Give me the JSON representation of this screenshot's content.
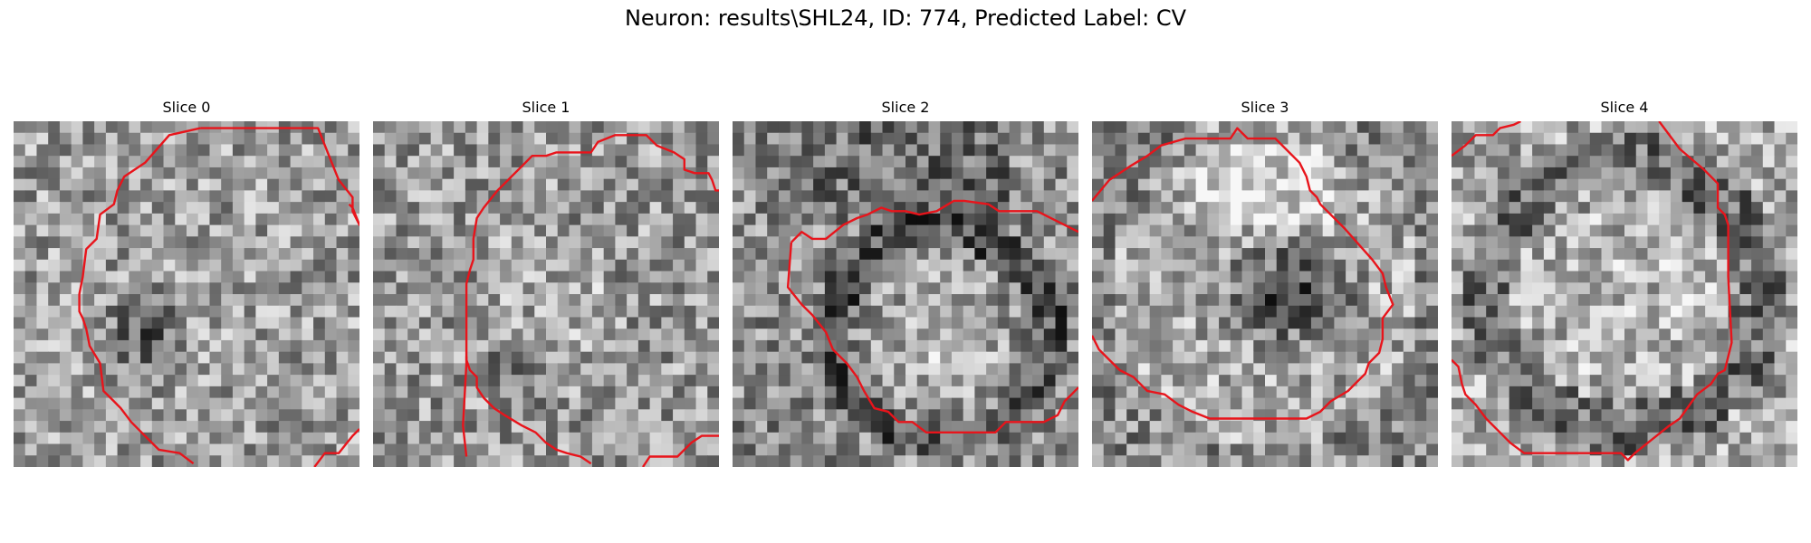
{
  "figure": {
    "title": "Neuron: results\\SHL24, ID: 774, Predicted Label: CV"
  },
  "panels": [
    {
      "title": "Slice 0",
      "seed": 11,
      "pattern": "dark-core",
      "contour": [
        [
          0.54,
          0.02
        ],
        [
          0.88,
          0.02
        ],
        [
          0.92,
          0.12
        ],
        [
          0.94,
          0.17
        ],
        [
          0.98,
          0.22
        ],
        [
          0.98,
          0.26
        ],
        [
          0.99,
          0.28
        ],
        [
          1.0,
          0.3
        ],
        [
          0.98,
          0.25
        ],
        [
          0.97,
          0.24
        ]
      ],
      "contour2": [
        [
          0.54,
          0.02
        ],
        [
          0.45,
          0.04
        ],
        [
          0.38,
          0.12
        ],
        [
          0.32,
          0.16
        ],
        [
          0.3,
          0.2
        ],
        [
          0.29,
          0.24
        ],
        [
          0.25,
          0.27
        ],
        [
          0.24,
          0.34
        ],
        [
          0.21,
          0.37
        ],
        [
          0.2,
          0.45
        ],
        [
          0.19,
          0.5
        ],
        [
          0.19,
          0.55
        ],
        [
          0.2,
          0.57
        ],
        [
          0.21,
          0.6
        ],
        [
          0.22,
          0.65
        ],
        [
          0.25,
          0.7
        ],
        [
          0.26,
          0.78
        ],
        [
          0.29,
          0.81
        ],
        [
          0.31,
          0.83
        ],
        [
          0.34,
          0.87
        ],
        [
          0.37,
          0.9
        ],
        [
          0.42,
          0.95
        ],
        [
          0.48,
          0.96
        ],
        [
          0.52,
          0.99
        ]
      ],
      "contour3": [
        [
          0.87,
          1.0
        ],
        [
          0.9,
          0.96
        ],
        [
          0.94,
          0.96
        ],
        [
          0.98,
          0.91
        ],
        [
          1.0,
          0.89
        ]
      ]
    },
    {
      "title": "Slice 1",
      "seed": 23,
      "pattern": "noisy",
      "contour": [
        [
          0.27,
          0.97
        ],
        [
          0.26,
          0.88
        ],
        [
          0.27,
          0.7
        ],
        [
          0.27,
          0.6
        ],
        [
          0.27,
          0.47
        ],
        [
          0.28,
          0.43
        ],
        [
          0.29,
          0.4
        ],
        [
          0.29,
          0.34
        ],
        [
          0.3,
          0.28
        ],
        [
          0.32,
          0.25
        ],
        [
          0.36,
          0.2
        ],
        [
          0.38,
          0.18
        ],
        [
          0.4,
          0.16
        ],
        [
          0.43,
          0.13
        ],
        [
          0.46,
          0.1
        ],
        [
          0.5,
          0.1
        ],
        [
          0.53,
          0.09
        ],
        [
          0.63,
          0.09
        ],
        [
          0.65,
          0.06
        ],
        [
          0.7,
          0.04
        ],
        [
          0.79,
          0.04
        ],
        [
          0.82,
          0.07
        ],
        [
          0.87,
          0.09
        ],
        [
          0.9,
          0.11
        ],
        [
          0.9,
          0.14
        ],
        [
          0.93,
          0.15
        ],
        [
          0.97,
          0.15
        ],
        [
          0.98,
          0.17
        ],
        [
          0.99,
          0.2
        ],
        [
          1.0,
          0.2
        ]
      ],
      "contour2": [
        [
          0.27,
          0.68
        ],
        [
          0.27,
          0.69
        ],
        [
          0.28,
          0.72
        ],
        [
          0.3,
          0.74
        ],
        [
          0.3,
          0.77
        ],
        [
          0.32,
          0.8
        ],
        [
          0.35,
          0.83
        ],
        [
          0.38,
          0.85
        ],
        [
          0.43,
          0.88
        ],
        [
          0.47,
          0.9
        ],
        [
          0.5,
          0.93
        ],
        [
          0.53,
          0.95
        ],
        [
          0.56,
          0.96
        ],
        [
          0.6,
          0.97
        ],
        [
          0.63,
          0.99
        ]
      ],
      "contour3": [
        [
          0.78,
          1.0
        ],
        [
          0.8,
          0.97
        ],
        [
          0.88,
          0.97
        ],
        [
          0.92,
          0.93
        ],
        [
          0.95,
          0.91
        ],
        [
          1.0,
          0.91
        ]
      ]
    },
    {
      "title": "Slice 2",
      "seed": 37,
      "pattern": "bright-core",
      "contour": [
        [
          0.17,
          0.35
        ],
        [
          0.2,
          0.32
        ],
        [
          0.23,
          0.34
        ],
        [
          0.27,
          0.34
        ],
        [
          0.32,
          0.3
        ],
        [
          0.36,
          0.28
        ],
        [
          0.39,
          0.27
        ],
        [
          0.43,
          0.25
        ],
        [
          0.46,
          0.26
        ],
        [
          0.5,
          0.26
        ],
        [
          0.54,
          0.27
        ],
        [
          0.59,
          0.26
        ],
        [
          0.64,
          0.23
        ],
        [
          0.67,
          0.23
        ],
        [
          0.74,
          0.24
        ],
        [
          0.77,
          0.26
        ],
        [
          0.88,
          0.26
        ],
        [
          1.0,
          0.32
        ]
      ],
      "contour2": [
        [
          0.17,
          0.35
        ],
        [
          0.16,
          0.48
        ],
        [
          0.2,
          0.53
        ],
        [
          0.23,
          0.56
        ],
        [
          0.27,
          0.61
        ],
        [
          0.29,
          0.66
        ],
        [
          0.33,
          0.7
        ],
        [
          0.36,
          0.74
        ],
        [
          0.38,
          0.78
        ],
        [
          0.41,
          0.83
        ],
        [
          0.45,
          0.84
        ],
        [
          0.48,
          0.87
        ],
        [
          0.52,
          0.87
        ],
        [
          0.56,
          0.9
        ],
        [
          0.76,
          0.9
        ],
        [
          0.79,
          0.87
        ],
        [
          0.9,
          0.87
        ],
        [
          0.94,
          0.85
        ],
        [
          0.96,
          0.81
        ],
        [
          0.98,
          0.79
        ],
        [
          1.0,
          0.77
        ]
      ],
      "contour3": []
    },
    {
      "title": "Slice 3",
      "seed": 53,
      "pattern": "dark-blob",
      "contour": [
        [
          0.0,
          0.23
        ],
        [
          0.05,
          0.17
        ],
        [
          0.11,
          0.13
        ],
        [
          0.16,
          0.1
        ],
        [
          0.2,
          0.07
        ],
        [
          0.27,
          0.05
        ],
        [
          0.4,
          0.05
        ],
        [
          0.42,
          0.02
        ],
        [
          0.45,
          0.05
        ],
        [
          0.53,
          0.05
        ],
        [
          0.6,
          0.12
        ],
        [
          0.62,
          0.16
        ],
        [
          0.63,
          0.2
        ],
        [
          0.65,
          0.22
        ],
        [
          0.66,
          0.24
        ],
        [
          0.73,
          0.31
        ],
        [
          0.81,
          0.4
        ],
        [
          0.84,
          0.44
        ],
        [
          0.85,
          0.48
        ],
        [
          0.87,
          0.53
        ],
        [
          0.84,
          0.57
        ],
        [
          0.84,
          0.63
        ],
        [
          0.83,
          0.67
        ],
        [
          0.8,
          0.7
        ],
        [
          0.79,
          0.73
        ],
        [
          0.77,
          0.75
        ],
        [
          0.74,
          0.78
        ],
        [
          0.69,
          0.81
        ],
        [
          0.66,
          0.84
        ],
        [
          0.62,
          0.86
        ],
        [
          0.34,
          0.86
        ],
        [
          0.29,
          0.84
        ],
        [
          0.25,
          0.82
        ],
        [
          0.21,
          0.79
        ],
        [
          0.16,
          0.78
        ],
        [
          0.12,
          0.74
        ],
        [
          0.08,
          0.72
        ],
        [
          0.05,
          0.69
        ],
        [
          0.02,
          0.66
        ],
        [
          0.0,
          0.62
        ]
      ],
      "contour2": [],
      "contour3": []
    },
    {
      "title": "Slice 4",
      "seed": 71,
      "pattern": "ring",
      "contour": [
        [
          0.0,
          0.1
        ],
        [
          0.04,
          0.07
        ],
        [
          0.07,
          0.04
        ],
        [
          0.12,
          0.04
        ],
        [
          0.14,
          0.02
        ],
        [
          0.18,
          0.01
        ],
        [
          0.2,
          0.0
        ]
      ],
      "contour2": [
        [
          0.6,
          0.0
        ],
        [
          0.66,
          0.08
        ],
        [
          0.73,
          0.14
        ],
        [
          0.77,
          0.18
        ],
        [
          0.77,
          0.25
        ],
        [
          0.79,
          0.27
        ],
        [
          0.8,
          0.3
        ],
        [
          0.8,
          0.45
        ],
        [
          0.81,
          0.64
        ],
        [
          0.8,
          0.68
        ],
        [
          0.79,
          0.72
        ],
        [
          0.77,
          0.73
        ],
        [
          0.75,
          0.76
        ],
        [
          0.71,
          0.79
        ],
        [
          0.66,
          0.86
        ],
        [
          0.63,
          0.88
        ],
        [
          0.58,
          0.92
        ],
        [
          0.53,
          0.96
        ],
        [
          0.51,
          0.98
        ],
        [
          0.49,
          0.96
        ],
        [
          0.21,
          0.96
        ],
        [
          0.17,
          0.93
        ],
        [
          0.14,
          0.9
        ],
        [
          0.1,
          0.86
        ],
        [
          0.07,
          0.82
        ],
        [
          0.04,
          0.79
        ],
        [
          0.03,
          0.76
        ],
        [
          0.02,
          0.71
        ],
        [
          0.0,
          0.69
        ]
      ],
      "contour3": []
    }
  ],
  "colors": {
    "contour": "#e8141b"
  }
}
